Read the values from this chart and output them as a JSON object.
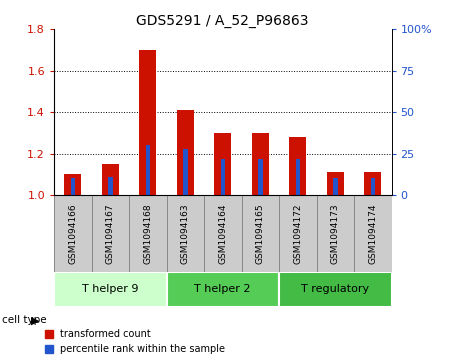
{
  "title": "GDS5291 / A_52_P96863",
  "samples": [
    "GSM1094166",
    "GSM1094167",
    "GSM1094168",
    "GSM1094163",
    "GSM1094164",
    "GSM1094165",
    "GSM1094172",
    "GSM1094173",
    "GSM1094174"
  ],
  "transformed_counts": [
    1.1,
    1.15,
    1.7,
    1.41,
    1.3,
    1.3,
    1.28,
    1.11,
    1.11
  ],
  "percentile_ranks": [
    10,
    11,
    30,
    28,
    22,
    22,
    22,
    10,
    10
  ],
  "left_ylim": [
    1.0,
    1.8
  ],
  "left_yticks": [
    1.0,
    1.2,
    1.4,
    1.6,
    1.8
  ],
  "right_ylim": [
    0,
    100
  ],
  "right_yticks": [
    0,
    25,
    50,
    75,
    100
  ],
  "right_yticklabels": [
    "0",
    "25",
    "50",
    "75",
    "100%"
  ],
  "red_color": "#cc1100",
  "blue_color": "#2255cc",
  "bar_width": 0.45,
  "blue_bar_width": 0.12,
  "groups": [
    {
      "label": "T helper 9",
      "indices": [
        0,
        1,
        2
      ],
      "color": "#ccffcc"
    },
    {
      "label": "T helper 2",
      "indices": [
        3,
        4,
        5
      ],
      "color": "#55cc55"
    },
    {
      "label": "T regulatory",
      "indices": [
        6,
        7,
        8
      ],
      "color": "#44bb44"
    }
  ],
  "cell_type_label": "cell type",
  "legend_items": [
    {
      "label": "transformed count",
      "color": "#cc1100"
    },
    {
      "label": "percentile rank within the sample",
      "color": "#2255cc"
    }
  ],
  "bg_color": "#ffffff",
  "plot_bg": "#ffffff",
  "grid_color": "#000000",
  "sample_cell_bg": "#cccccc",
  "sample_cell_border": "#888888"
}
